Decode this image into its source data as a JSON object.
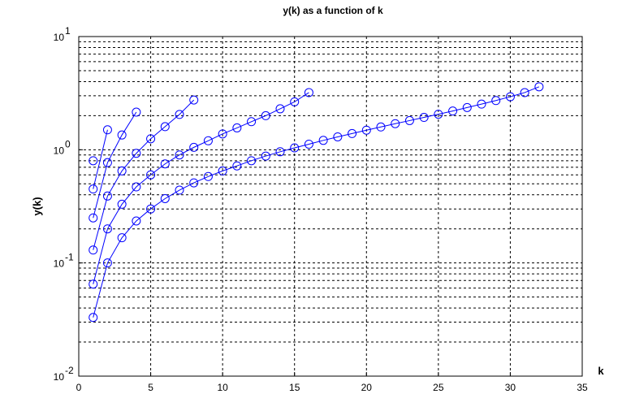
{
  "chart_data": {
    "type": "line",
    "title": "y(k) as a function of k",
    "x_label": "k",
    "y_label": "y(k)",
    "log_y": true,
    "grid": true,
    "marker": "circle",
    "xlim": [
      0,
      35
    ],
    "xticks": [
      0,
      5,
      10,
      15,
      20,
      25,
      30,
      35
    ],
    "ylim": [
      0.01,
      10
    ],
    "yticks": [
      {
        "value": 0.01,
        "label": "10",
        "exponent": "-2"
      },
      {
        "value": 0.1,
        "label": "10",
        "exponent": "-1"
      },
      {
        "value": 1,
        "label": "10",
        "exponent": "0"
      },
      {
        "value": 10,
        "label": "10",
        "exponent": "1"
      }
    ],
    "series": [
      {
        "color": "#0000ff",
        "x": [
          1
        ],
        "values": [
          0.8
        ]
      },
      {
        "color": "#0000ff",
        "x": [
          1,
          2
        ],
        "values": [
          0.45,
          1.5
        ]
      },
      {
        "color": "#0000ff",
        "x": [
          1,
          2,
          3,
          4
        ],
        "values": [
          0.25,
          0.77,
          1.35,
          2.15
        ]
      },
      {
        "color": "#0000ff",
        "x": [
          1,
          2,
          3,
          4,
          5,
          6,
          7,
          8
        ],
        "values": [
          0.13,
          0.39,
          0.65,
          0.93,
          1.25,
          1.6,
          2.05,
          2.75
        ]
      },
      {
        "color": "#0000ff",
        "x": [
          1,
          2,
          3,
          4,
          5,
          6,
          7,
          8,
          9,
          10,
          11,
          12,
          13,
          14,
          15,
          16
        ],
        "values": [
          0.065,
          0.2,
          0.33,
          0.47,
          0.6,
          0.75,
          0.9,
          1.05,
          1.2,
          1.38,
          1.56,
          1.77,
          2.0,
          2.3,
          2.65,
          3.2
        ]
      },
      {
        "color": "#0000ff",
        "x": [
          1,
          2,
          3,
          4,
          5,
          6,
          7,
          8,
          9,
          10,
          11,
          12,
          13,
          14,
          15,
          16,
          17,
          18,
          19,
          20,
          21,
          22,
          23,
          24,
          25,
          26,
          27,
          28,
          29,
          30,
          31,
          32
        ],
        "values": [
          0.033,
          0.1,
          0.167,
          0.235,
          0.3,
          0.37,
          0.44,
          0.51,
          0.58,
          0.65,
          0.72,
          0.8,
          0.88,
          0.96,
          1.04,
          1.12,
          1.21,
          1.3,
          1.39,
          1.49,
          1.59,
          1.7,
          1.81,
          1.93,
          2.06,
          2.2,
          2.36,
          2.53,
          2.72,
          2.94,
          3.2,
          3.6
        ]
      }
    ]
  }
}
